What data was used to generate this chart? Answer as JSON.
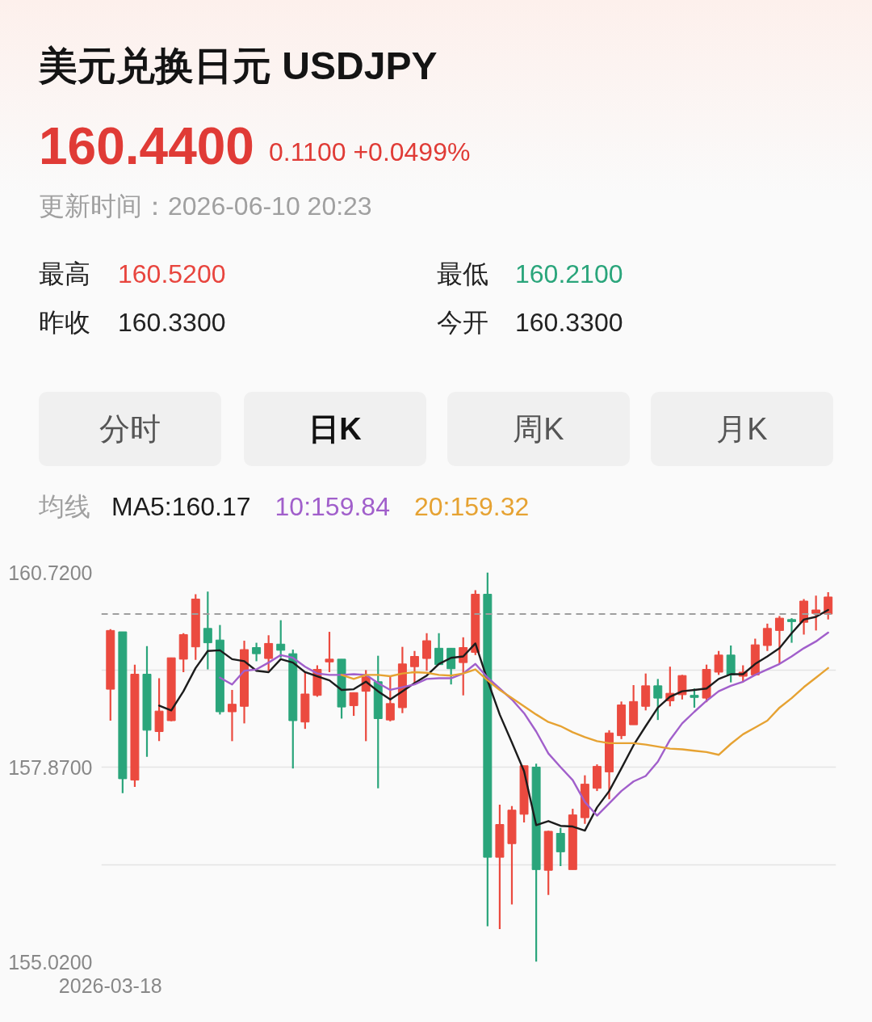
{
  "chart_data": {
    "type": "candlestick",
    "title": "美元兑换日元 USDJPY",
    "annotations": [
      "160.4400",
      "0.1100 +0.0499%",
      "更新时间：2026-06-10 20:23",
      "最高",
      "160.5200",
      "最低",
      "160.2100",
      "昨收",
      "160.3300",
      "今开",
      "160.3300",
      "分时",
      "日K",
      "周K",
      "月K"
    ],
    "categories": [
      "2026-03-18",
      null,
      null,
      null,
      null,
      null,
      null,
      null,
      null,
      null,
      null,
      null,
      null,
      null,
      null,
      null,
      null,
      null,
      null,
      null,
      null,
      null,
      null,
      null,
      null,
      null,
      null,
      null,
      null,
      null,
      null,
      null,
      null,
      null,
      null,
      null,
      null,
      null,
      null,
      null,
      null,
      null,
      null,
      null,
      null,
      null,
      null,
      null,
      null,
      null,
      null,
      null,
      null,
      null,
      null,
      null,
      null,
      null,
      null,
      null
    ],
    "ohlc": [
      [
        159.01,
        159.89,
        158.55,
        159.87
      ],
      [
        159.85,
        159.85,
        157.49,
        157.7
      ],
      [
        157.68,
        159.37,
        157.58,
        159.23
      ],
      [
        159.23,
        159.64,
        158.02,
        158.41
      ],
      [
        158.39,
        159.17,
        158.25,
        158.69
      ],
      [
        158.55,
        159.47,
        158.54,
        159.47
      ],
      [
        159.45,
        159.83,
        159.26,
        159.81
      ],
      [
        159.63,
        160.4,
        159.44,
        160.33
      ],
      [
        159.9,
        160.44,
        159.3,
        159.69
      ],
      [
        159.73,
        159.95,
        158.64,
        158.68
      ],
      [
        158.68,
        159.0,
        158.25,
        158.79
      ],
      [
        158.76,
        159.72,
        158.51,
        159.59
      ],
      [
        159.62,
        159.69,
        159.42,
        159.53
      ],
      [
        159.46,
        159.8,
        159.28,
        159.68
      ],
      [
        159.67,
        160.02,
        159.47,
        159.58
      ],
      [
        159.53,
        159.59,
        157.85,
        158.55
      ],
      [
        158.53,
        159.25,
        158.43,
        158.94
      ],
      [
        158.92,
        159.36,
        158.9,
        159.3
      ],
      [
        159.41,
        159.85,
        159.26,
        159.45
      ],
      [
        159.45,
        159.45,
        158.58,
        158.75
      ],
      [
        158.77,
        158.96,
        158.62,
        158.96
      ],
      [
        158.98,
        159.29,
        158.25,
        159.19
      ],
      [
        159.12,
        159.5,
        157.56,
        158.58
      ],
      [
        158.56,
        159.19,
        158.54,
        158.8
      ],
      [
        158.74,
        159.63,
        158.66,
        159.38
      ],
      [
        159.34,
        159.57,
        159.1,
        159.49
      ],
      [
        159.46,
        159.83,
        159.28,
        159.72
      ],
      [
        159.61,
        159.83,
        159.37,
        159.37
      ],
      [
        159.61,
        159.61,
        159.08,
        159.31
      ],
      [
        159.4,
        159.77,
        158.92,
        159.62
      ],
      [
        159.55,
        160.46,
        159.51,
        160.4
      ],
      [
        160.4,
        160.72,
        155.54,
        156.55
      ],
      [
        156.55,
        157.32,
        155.5,
        157.03
      ],
      [
        156.75,
        157.3,
        155.86,
        157.24
      ],
      [
        157.18,
        157.89,
        157.06,
        157.89
      ],
      [
        157.87,
        157.92,
        155.02,
        156.37
      ],
      [
        156.36,
        156.94,
        156.0,
        156.93
      ],
      [
        156.9,
        156.98,
        156.42,
        156.63
      ],
      [
        156.37,
        157.26,
        156.37,
        157.17
      ],
      [
        157.13,
        157.75,
        157.04,
        157.62
      ],
      [
        157.56,
        157.91,
        157.52,
        157.88
      ],
      [
        157.8,
        158.41,
        157.4,
        158.37
      ],
      [
        158.33,
        158.83,
        158.28,
        158.78
      ],
      [
        158.49,
        159.07,
        158.49,
        158.83
      ],
      [
        158.76,
        159.24,
        158.7,
        159.06
      ],
      [
        159.06,
        159.16,
        158.56,
        158.88
      ],
      [
        158.84,
        159.34,
        158.76,
        158.95
      ],
      [
        158.93,
        159.22,
        158.86,
        159.21
      ],
      [
        158.92,
        159.02,
        158.74,
        158.89
      ],
      [
        158.88,
        159.37,
        158.82,
        159.3
      ],
      [
        159.26,
        159.57,
        159.22,
        159.51
      ],
      [
        159.51,
        159.65,
        159.11,
        159.22
      ],
      [
        159.2,
        159.36,
        159.11,
        159.26
      ],
      [
        159.22,
        159.75,
        159.21,
        159.66
      ],
      [
        159.65,
        159.97,
        159.57,
        159.9
      ],
      [
        159.87,
        160.08,
        159.38,
        160.05
      ],
      [
        160.03,
        160.05,
        159.69,
        160.0
      ],
      [
        159.99,
        160.33,
        159.81,
        160.3
      ],
      [
        160.12,
        160.38,
        159.87,
        160.17
      ],
      [
        160.11,
        160.43,
        160.03,
        160.36
      ]
    ],
    "colors": [
      "#eb4a3f",
      "#2aa57b",
      "#eb4a3f",
      "#2aa57b",
      "#eb4a3f",
      "#eb4a3f",
      "#eb4a3f",
      "#eb4a3f",
      "#2aa57b",
      "#2aa57b",
      "#eb4a3f",
      "#eb4a3f",
      "#2aa57b",
      "#eb4a3f",
      "#2aa57b",
      "#2aa57b",
      "#eb4a3f",
      "#eb4a3f",
      "#eb4a3f",
      "#2aa57b",
      "#eb4a3f",
      "#eb4a3f",
      "#2aa57b",
      "#eb4a3f",
      "#eb4a3f",
      "#eb4a3f",
      "#eb4a3f",
      "#2aa57b",
      "#2aa57b",
      "#eb4a3f",
      "#eb4a3f",
      "#2aa57b",
      "#eb4a3f",
      "#eb4a3f",
      "#eb4a3f",
      "#2aa57b",
      "#eb4a3f",
      "#2aa57b",
      "#eb4a3f",
      "#eb4a3f",
      "#eb4a3f",
      "#eb4a3f",
      "#eb4a3f",
      "#eb4a3f",
      "#eb4a3f",
      "#2aa57b",
      "#eb4a3f",
      "#eb4a3f",
      "#2aa57b",
      "#eb4a3f",
      "#eb4a3f",
      "#2aa57b",
      "#eb4a3f",
      "#eb4a3f",
      "#eb4a3f",
      "#eb4a3f",
      "#2aa57b",
      "#eb4a3f",
      "#eb4a3f",
      "#eb4a3f"
    ],
    "series": [
      {
        "name": "MA5:160.17",
        "type": "line",
        "color": "#1c1c1c",
        "values": [
          null,
          null,
          null,
          null,
          158.77,
          158.7,
          158.98,
          159.32,
          159.57,
          159.58,
          159.45,
          159.42,
          159.28,
          159.26,
          159.45,
          159.4,
          159.26,
          159.2,
          159.14,
          159.0,
          159.01,
          159.12,
          158.98,
          158.86,
          158.98,
          159.1,
          159.21,
          159.38,
          159.47,
          159.49,
          159.68,
          159.14,
          158.64,
          158.23,
          157.81,
          157.02,
          157.08,
          157.01,
          157.0,
          156.94,
          157.28,
          157.52,
          157.85,
          158.19,
          158.47,
          158.74,
          158.9,
          158.98,
          159.0,
          159.02,
          159.16,
          159.23,
          159.23,
          159.38,
          159.49,
          159.61,
          159.83,
          160.03,
          160.07,
          160.17
        ]
      },
      {
        "name": "10:159.84",
        "type": "line",
        "color": "#a15fcb",
        "values": [
          null,
          null,
          null,
          null,
          null,
          null,
          null,
          null,
          null,
          159.18,
          159.08,
          159.28,
          159.3,
          159.4,
          159.51,
          159.47,
          159.34,
          159.24,
          159.22,
          159.22,
          159.23,
          159.22,
          159.1,
          159.0,
          159.04,
          159.08,
          159.16,
          159.17,
          159.17,
          159.24,
          159.38,
          159.18,
          159.02,
          158.86,
          158.66,
          158.39,
          158.07,
          157.87,
          157.68,
          157.36,
          157.16,
          157.34,
          157.52,
          157.66,
          157.74,
          157.95,
          158.27,
          158.51,
          158.68,
          158.84,
          158.98,
          159.06,
          159.12,
          159.22,
          159.3,
          159.38,
          159.49,
          159.61,
          159.71,
          159.84
        ]
      },
      {
        "name": "20:159.32",
        "type": "line",
        "color": "#e6a232",
        "values": [
          null,
          null,
          null,
          null,
          null,
          null,
          null,
          null,
          null,
          null,
          null,
          null,
          null,
          null,
          null,
          null,
          null,
          null,
          null,
          159.22,
          159.16,
          159.22,
          159.22,
          159.2,
          159.24,
          159.26,
          159.25,
          159.22,
          159.21,
          159.24,
          159.3,
          159.14,
          159.0,
          158.88,
          158.76,
          158.64,
          158.53,
          158.47,
          158.38,
          158.31,
          158.25,
          158.22,
          158.22,
          158.22,
          158.2,
          158.17,
          158.14,
          158.13,
          158.11,
          158.09,
          158.05,
          158.21,
          158.35,
          158.45,
          158.55,
          158.74,
          158.88,
          159.04,
          159.18,
          159.32
        ]
      }
    ],
    "legend": "top left",
    "legend_title": "均线",
    "ylim": [
      155.02,
      160.72
    ],
    "yticks": [
      {
        "value": 160.72,
        "label": "160.7200"
      },
      {
        "value": 159.295,
        "label": null
      },
      {
        "value": 157.87,
        "label": "157.8700"
      },
      {
        "value": 156.445,
        "label": null
      },
      {
        "value": 155.02,
        "label": "155.0200"
      }
    ],
    "grid": "y",
    "ref_lines": [
      {
        "axis": "y",
        "value": 160.11,
        "color": "#9e9e9e",
        "line_style": "dashed"
      }
    ]
  }
}
